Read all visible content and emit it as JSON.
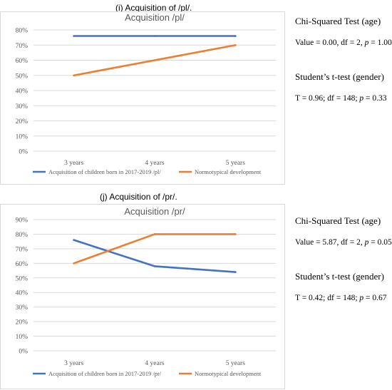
{
  "panels": [
    {
      "caption": "(i) Acquisition of /pl/.",
      "stats": {
        "chi_title": "Chi-Squared Test (age)",
        "chi_prefix": "Value = 0.00, df = 2, ",
        "chi_p_label": "p",
        "chi_p_value": " = 1.00",
        "t_title": "Student’s t-test (gender)",
        "t_prefix": "T = 0.96; df = 148; ",
        "t_p_label": "p",
        "t_p_value": " = 0.33"
      }
    },
    {
      "caption": "(j) Acquisition of /pr/.",
      "stats": {
        "chi_title": "Chi-Squared Test (age)",
        "chi_prefix": "Value = 5.87, df = 2, ",
        "chi_p_label": "p",
        "chi_p_value": " = 0.05",
        "t_title": "Student’s t-test (gender)",
        "t_prefix": "T = 0.42; df = 148; ",
        "t_p_label": "p",
        "t_p_value": " = 0.67"
      }
    }
  ],
  "colors": {
    "series_1": "#4472c4",
    "series_2": "#ed7d31",
    "grid": "#d9d9d9",
    "axis_text": "#595959"
  },
  "chart_data": [
    {
      "type": "line",
      "title": "Acquisition /pl/",
      "categories": [
        "3 years",
        "4 years",
        "5 years"
      ],
      "series": [
        {
          "name": "Acquisition of children born in 2017-2019 /pl/",
          "values": [
            76,
            76,
            76
          ]
        },
        {
          "name": "Normotypical development",
          "values": [
            50,
            60,
            70
          ]
        }
      ],
      "ylim": [
        0,
        80
      ],
      "yticks": [
        "0%",
        "10%",
        "20%",
        "30%",
        "40%",
        "50%",
        "60%",
        "70%",
        "80%"
      ],
      "grid": true,
      "legend": "bottom"
    },
    {
      "type": "line",
      "title": "Acquisition /pr/",
      "categories": [
        "3 years",
        "4 years",
        "5 years"
      ],
      "series": [
        {
          "name": "Acquisition of children born in 2017-2019 /pr/",
          "values": [
            76,
            58,
            54
          ]
        },
        {
          "name": "Normotypical development",
          "values": [
            60,
            80,
            80
          ]
        }
      ],
      "ylim": [
        0,
        90
      ],
      "yticks": [
        "0%",
        "10%",
        "20%",
        "30%",
        "40%",
        "50%",
        "60%",
        "70%",
        "80%",
        "90%"
      ],
      "grid": true,
      "legend": "bottom"
    }
  ]
}
